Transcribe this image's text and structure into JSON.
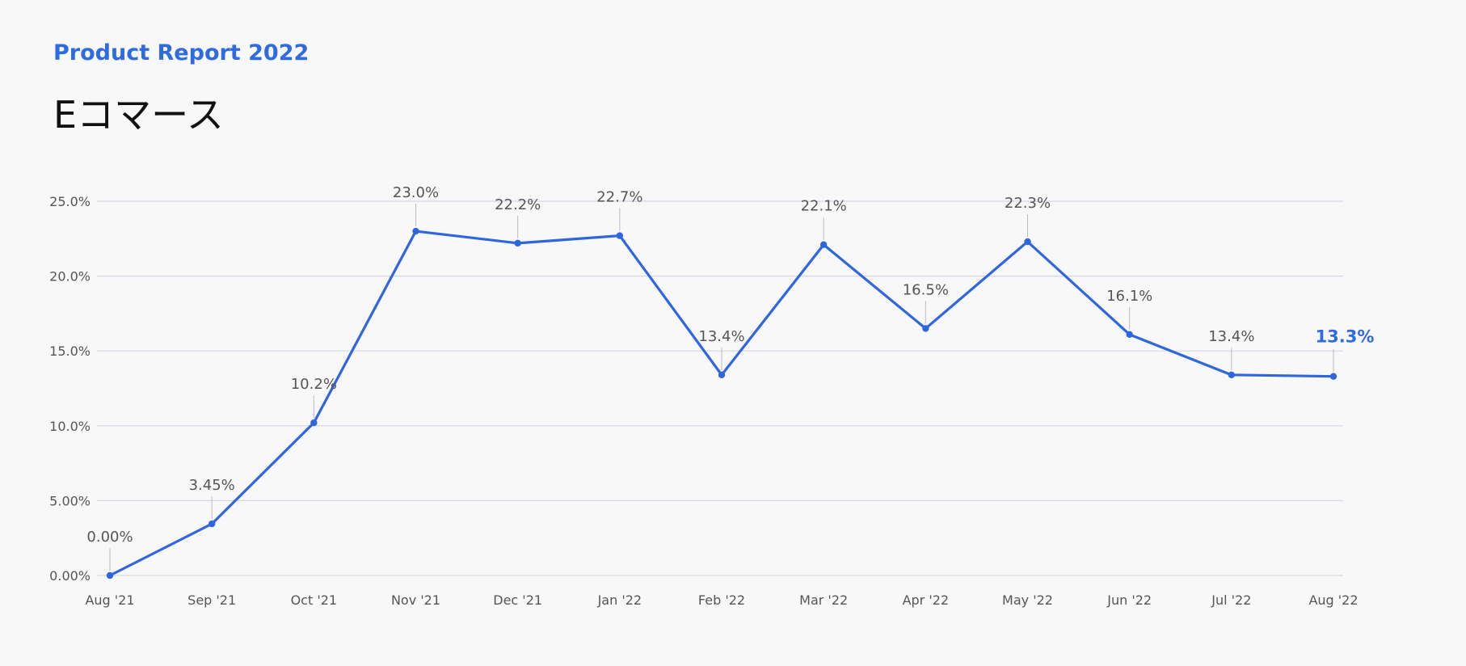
{
  "header": {
    "subtitle": "Product Report 2022",
    "title": "Eコマース"
  },
  "colors": {
    "accent": "#2f6be0",
    "line": "#2f66de",
    "grid": "#d3d8e6",
    "text": "#555555",
    "background": "#f8f8f8"
  },
  "chart_data": {
    "type": "line",
    "title": "Eコマース",
    "subtitle": "Product Report 2022",
    "categories": [
      "Aug '21",
      "Sep '21",
      "Oct '21",
      "Nov '21",
      "Dec '21",
      "Jan '22",
      "Feb '22",
      "Mar '22",
      "Apr '22",
      "May '22",
      "Jun '22",
      "Jul '22",
      "Aug '22"
    ],
    "series": [
      {
        "values": [
          0.0,
          3.45,
          10.2,
          23.0,
          22.2,
          22.7,
          13.4,
          22.1,
          16.5,
          22.3,
          16.1,
          13.4,
          13.3
        ],
        "labels": [
          "0.00%",
          "3.45%",
          "10.2%",
          "23.0%",
          "22.2%",
          "22.7%",
          "13.4%",
          "22.1%",
          "16.5%",
          "22.3%",
          "16.1%",
          "13.4%",
          "13.3%"
        ]
      }
    ],
    "y_ticks": [
      0,
      5,
      10,
      15,
      20,
      25
    ],
    "y_tick_labels": [
      "0.00%",
      "5.00%",
      "10.0%",
      "15.0%",
      "20.0%",
      "25.0%"
    ],
    "ylim": [
      0,
      25
    ],
    "grid": true,
    "legend": "none",
    "highlight_last_point": true
  }
}
